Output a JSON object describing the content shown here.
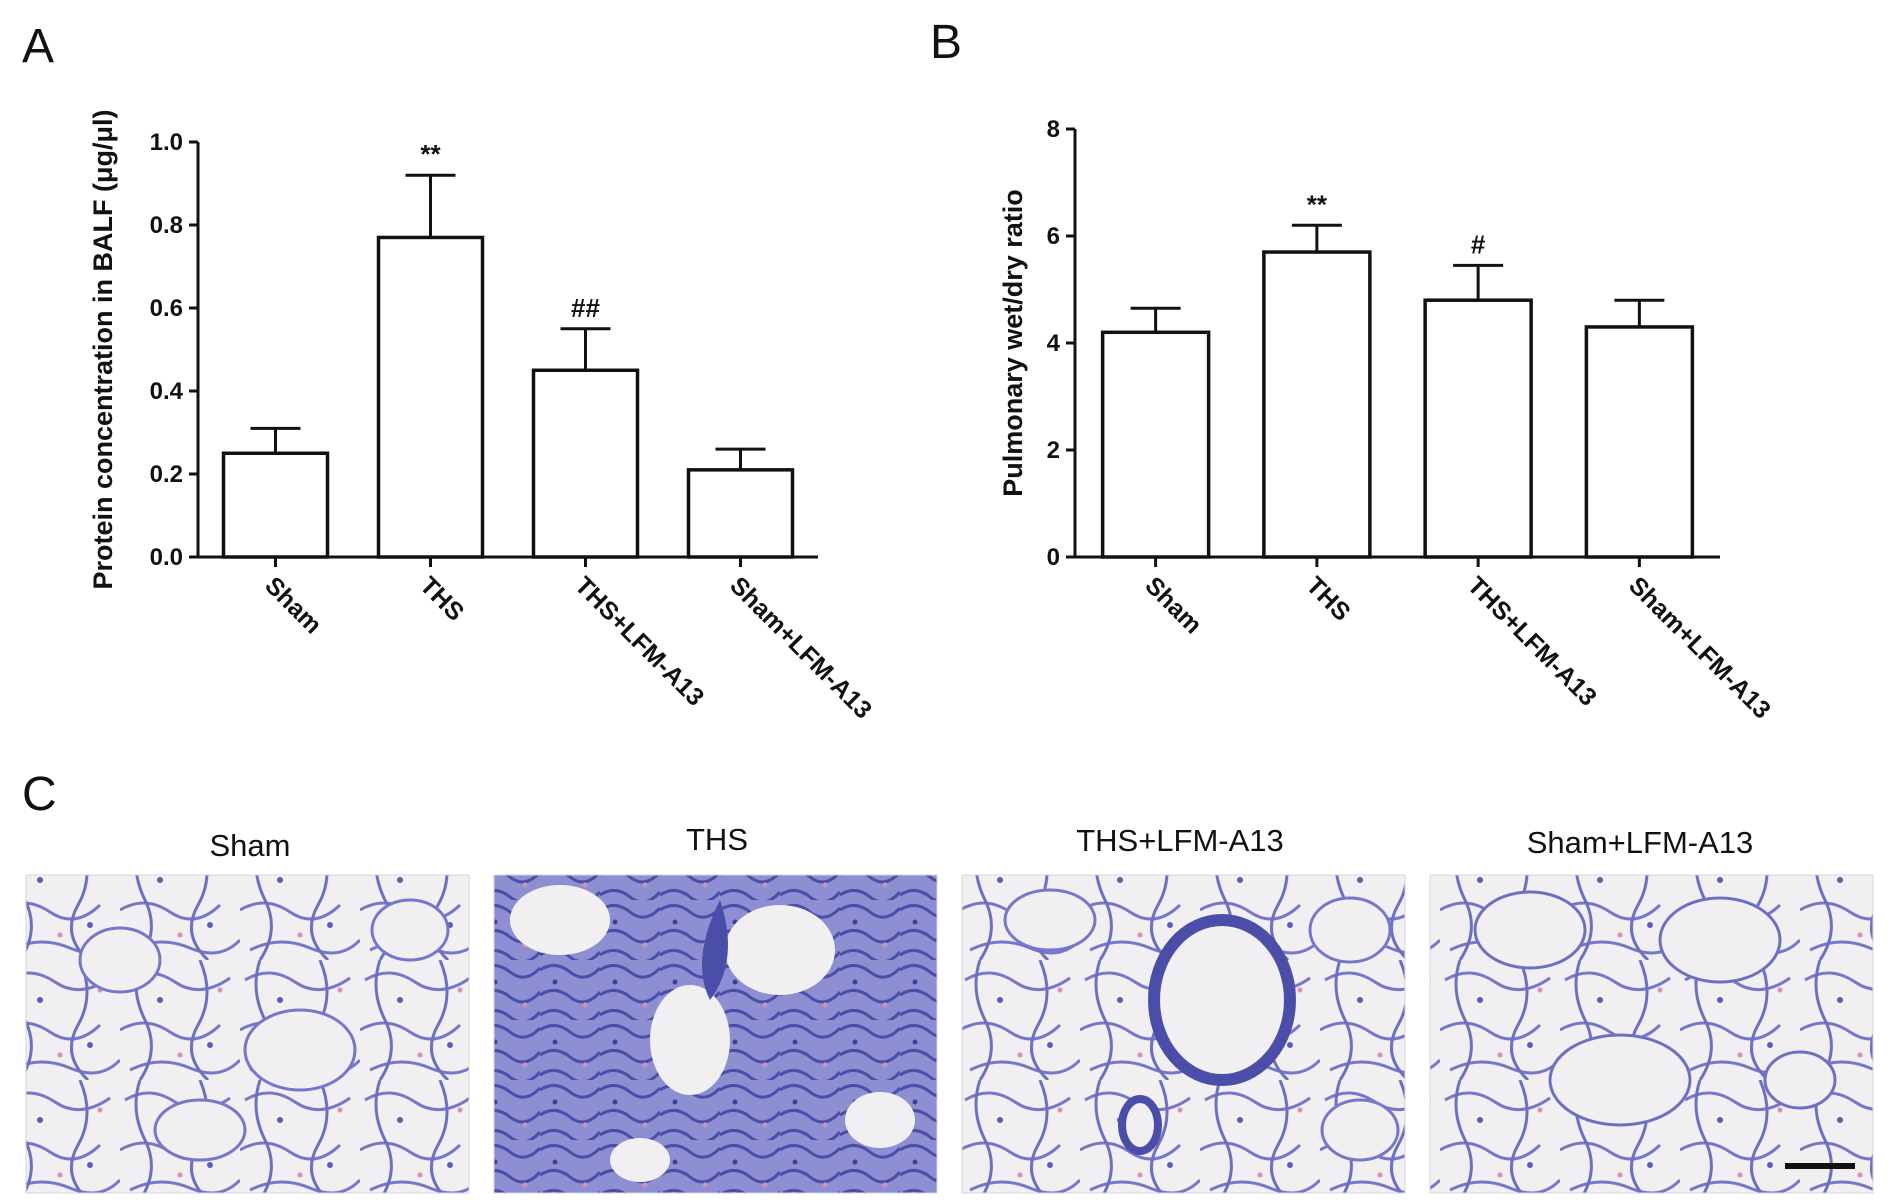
{
  "figure": {
    "panel_labels": [
      "A",
      "B",
      "C"
    ]
  },
  "chart_data": [
    {
      "panel": "A",
      "type": "bar",
      "categories": [
        "Sham",
        "THS",
        "THS+LFM-A13",
        "Sham+LFM-A13"
      ],
      "values": [
        0.25,
        0.77,
        0.45,
        0.21
      ],
      "errors": [
        0.06,
        0.15,
        0.1,
        0.05
      ],
      "significance": [
        "",
        "**",
        "##",
        ""
      ],
      "ylabel": "Protein concentration in BALF (μg/μl)",
      "ylim": [
        0,
        1.0
      ],
      "yticks": [
        "0.0",
        "0.2",
        "0.4",
        "0.6",
        "0.8",
        "1.0"
      ],
      "grid": false,
      "colors": {
        "bar_fill": "#ffffff",
        "bar_stroke": "#111111"
      }
    },
    {
      "panel": "B",
      "type": "bar",
      "categories": [
        "Sham",
        "THS",
        "THS+LFM-A13",
        "Sham+LFM-A13"
      ],
      "values": [
        4.2,
        5.7,
        4.8,
        4.3
      ],
      "errors": [
        0.45,
        0.5,
        0.65,
        0.5
      ],
      "significance": [
        "",
        "**",
        "#",
        ""
      ],
      "ylabel": "Pulmonary wet/dry ratio",
      "ylim": [
        0,
        8
      ],
      "yticks": [
        "0",
        "2",
        "4",
        "6",
        "8"
      ],
      "grid": false,
      "colors": {
        "bar_fill": "#ffffff",
        "bar_stroke": "#111111"
      }
    }
  ],
  "histology": {
    "images": [
      {
        "title": "Sham"
      },
      {
        "title": "THS"
      },
      {
        "title": "THS+LFM-A13"
      },
      {
        "title": "Sham+LFM-A13"
      }
    ],
    "has_scale_bar": true,
    "colors": {
      "background": "#f1eff2",
      "tissue": "#6f6fc4",
      "dense": "#4a4ea8",
      "pink": "#cf93b8"
    }
  }
}
